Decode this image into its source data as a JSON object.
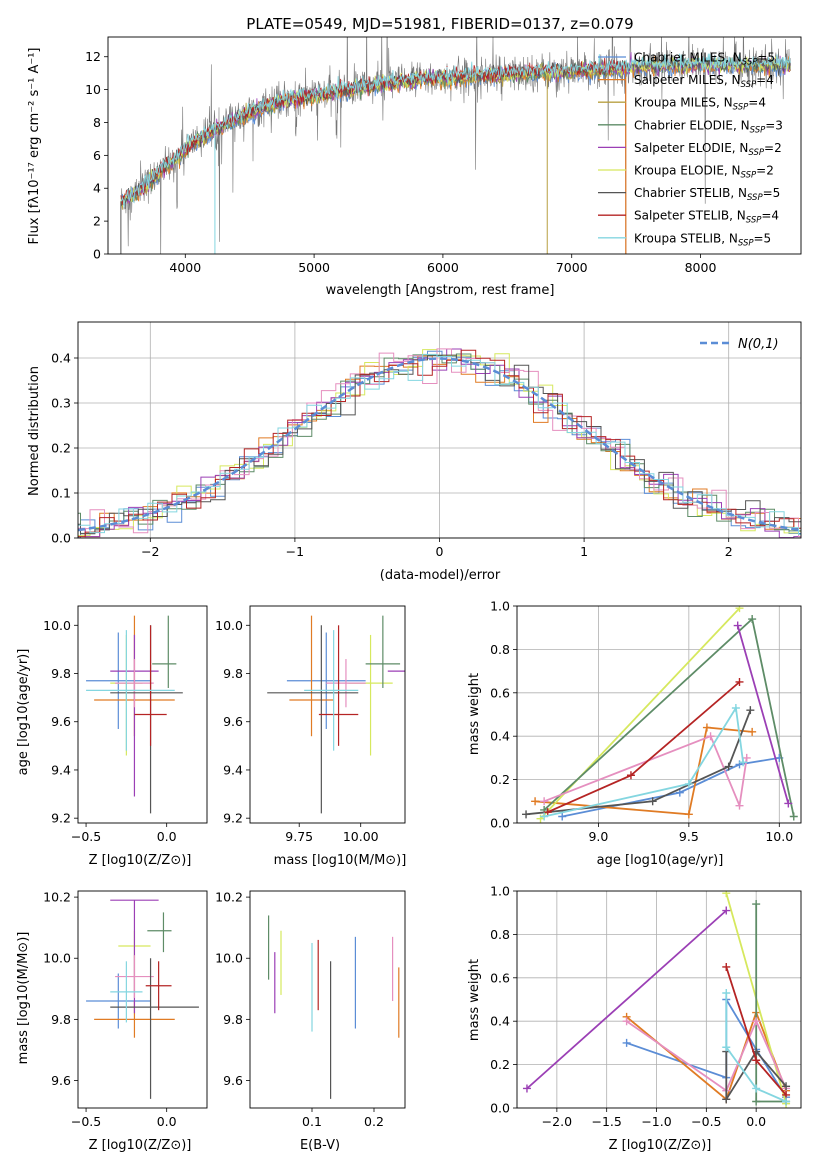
{
  "chart_data": [
    {
      "type": "line",
      "title": "PLATE=0549, MJD=51981, FIBERID=0137, z=0.079",
      "xlabel": "wavelength [Angstrom, rest frame]",
      "ylabel": "Flux [fλ10⁻¹⁷ erg cm⁻² s⁻¹ A⁻¹]",
      "xlim": [
        3400,
        8780
      ],
      "ylim": [
        0,
        13.2
      ],
      "xticks": [
        4000,
        5000,
        6000,
        7000,
        8000
      ],
      "yticks": [
        0,
        2,
        4,
        6,
        8,
        10,
        12
      ],
      "legend_position": "right",
      "continuum": {
        "x": [
          3500,
          3600,
          3700,
          3800,
          3900,
          4000,
          4100,
          4200,
          4300,
          4400,
          4500,
          4600,
          4700,
          4800,
          4900,
          5000,
          5200,
          5400,
          5600,
          5800,
          6000,
          6200,
          6400,
          6600,
          6800,
          7000,
          7200,
          7400,
          7600,
          7800,
          8000,
          8200,
          8400,
          8600,
          8700
        ],
        "y": [
          3.2,
          3.6,
          4.2,
          5.0,
          5.6,
          6.4,
          7.0,
          7.4,
          7.8,
          8.2,
          8.6,
          8.9,
          9.1,
          9.4,
          9.5,
          9.6,
          9.9,
          10.2,
          10.4,
          10.6,
          10.7,
          10.8,
          10.9,
          11.0,
          11.1,
          11.1,
          11.2,
          11.3,
          11.4,
          11.5,
          11.5,
          11.5,
          11.5,
          11.5,
          11.4
        ]
      },
      "series": [
        {
          "name": "Chabrier MILES, N_SSP=5",
          "name_main": "Chabrier MILES, N",
          "name_sub": "SSP",
          "name_tail": "=5",
          "color": "#5b8dd6"
        },
        {
          "name": "Salpeter MILES, N_SSP=4",
          "name_main": "Salpeter MILES, N",
          "name_sub": "SSP",
          "name_tail": "=4",
          "color": "#e07b24"
        },
        {
          "name": "Kroupa MILES, N_SSP=4",
          "name_main": "Kroupa MILES, N",
          "name_sub": "SSP",
          "name_tail": "=4",
          "color": "#b8a042"
        },
        {
          "name": "Chabrier ELODIE, N_SSP=3",
          "name_main": "Chabrier ELODIE, N",
          "name_sub": "SSP",
          "name_tail": "=3",
          "color": "#5e8c67"
        },
        {
          "name": "Salpeter ELODIE, N_SSP=2",
          "name_main": "Salpeter ELODIE, N",
          "name_sub": "SSP",
          "name_tail": "=2",
          "color": "#9b3fb5"
        },
        {
          "name": "Kroupa ELODIE, N_SSP=2",
          "name_main": "Kroupa ELODIE, N",
          "name_sub": "SSP",
          "name_tail": "=2",
          "color": "#d6e85e"
        },
        {
          "name": "Chabrier STELIB, N_SSP=5",
          "name_main": "Chabrier STELIB, N",
          "name_sub": "SSP",
          "name_tail": "=5",
          "color": "#555555"
        },
        {
          "name": "Salpeter STELIB, N_SSP=4",
          "name_main": "Salpeter STELIB, N",
          "name_sub": "SSP",
          "name_tail": "=4",
          "color": "#b52424"
        },
        {
          "name": "Kroupa STELIB, N_SSP=5",
          "name_main": "Kroupa STELIB, N",
          "name_sub": "SSP",
          "name_tail": "=5",
          "color": "#84d6e0"
        }
      ]
    },
    {
      "type": "bar",
      "xlabel": "(data-model)/error",
      "ylabel": "Normed distribution",
      "xlim": [
        -2.5,
        2.5
      ],
      "ylim": [
        0,
        0.48
      ],
      "xticks": [
        -2,
        -1,
        0,
        1,
        2
      ],
      "yticks": [
        0.0,
        0.1,
        0.2,
        0.3,
        0.4
      ],
      "grid": true,
      "bin_width": 0.1,
      "legend": {
        "label": "N(0,1)",
        "position": "top-right",
        "color": "#5b8dd6"
      },
      "histogram_colors": [
        "#5b8dd6",
        "#e07b24",
        "#d6e85e",
        "#5e8c67",
        "#9b3fb5",
        "#e58fbf",
        "#555555",
        "#b52424",
        "#84d6e0"
      ]
    },
    {
      "type": "scatter",
      "xlabel": "Z [log10(Z/Z⊙)]",
      "ylabel": "age [log10(age/yr)]",
      "xlim": [
        -0.55,
        0.25
      ],
      "ylim": [
        9.18,
        10.08
      ],
      "xticks": [
        -0.5,
        0.0
      ],
      "yticks": [
        9.2,
        9.4,
        9.6,
        9.8,
        10.0
      ],
      "points": [
        {
          "x": -0.3,
          "y": 9.77,
          "xerr": [
            0.2,
            0.2
          ],
          "yerr": [
            0.2,
            0.2
          ],
          "color": "#5b8dd6"
        },
        {
          "x": -0.2,
          "y": 9.69,
          "xerr": [
            0.25,
            0.25
          ],
          "yerr": [
            0.15,
            0.35
          ],
          "color": "#e07b24"
        },
        {
          "x": -0.25,
          "y": 9.76,
          "xerr": [
            0.1,
            0.1
          ],
          "yerr": [
            0.3,
            0.2
          ],
          "color": "#d6e85e"
        },
        {
          "x": 0.01,
          "y": 9.84,
          "xerr": [
            0.1,
            0.05
          ],
          "yerr": [
            0.1,
            0.2
          ],
          "color": "#5e8c67"
        },
        {
          "x": -0.2,
          "y": 9.81,
          "xerr": [
            0.15,
            0.15
          ],
          "yerr": [
            0.52,
            0.15
          ],
          "color": "#9b3fb5"
        },
        {
          "x": -0.2,
          "y": 9.76,
          "xerr": [
            0.12,
            0.12
          ],
          "yerr": [
            0.1,
            0.1
          ],
          "color": "#e58fbf"
        },
        {
          "x": -0.1,
          "y": 9.72,
          "xerr": [
            0.25,
            0.2
          ],
          "yerr": [
            0.5,
            0.28
          ],
          "color": "#555555"
        },
        {
          "x": -0.1,
          "y": 9.63,
          "xerr": [
            0.1,
            0.1
          ],
          "yerr": [
            0.13,
            0.37
          ],
          "color": "#b52424"
        },
        {
          "x": -0.25,
          "y": 9.73,
          "xerr": [
            0.25,
            0.3
          ],
          "yerr": [
            0.25,
            0.25
          ],
          "color": "#84d6e0"
        }
      ]
    },
    {
      "type": "scatter",
      "xlabel": "mass [log10(M/M⊙)]",
      "ylabel": "",
      "xlim": [
        9.55,
        10.18
      ],
      "ylim": [
        9.18,
        10.08
      ],
      "xticks": [
        9.75,
        10.0
      ],
      "yticks": [
        9.2,
        9.4,
        9.6,
        9.8,
        10.0
      ],
      "points": [
        {
          "x": 9.86,
          "y": 9.77,
          "xerr": [
            0.16,
            0.16
          ],
          "yerr": [
            0.2,
            0.2
          ],
          "color": "#5b8dd6"
        },
        {
          "x": 9.8,
          "y": 9.69,
          "xerr": [
            0.09,
            0.09
          ],
          "yerr": [
            0.15,
            0.35
          ],
          "color": "#e07b24"
        },
        {
          "x": 10.04,
          "y": 9.76,
          "xerr": [
            0.09,
            0.09
          ],
          "yerr": [
            0.3,
            0.2
          ],
          "color": "#d6e85e"
        },
        {
          "x": 10.09,
          "y": 9.84,
          "xerr": [
            0.07,
            0.07
          ],
          "yerr": [
            0.1,
            0.2
          ],
          "color": "#5e8c67"
        },
        {
          "x": 10.19,
          "y": 9.81,
          "xerr": [
            0.08,
            0.0
          ],
          "yerr": [
            0.52,
            0.03
          ],
          "color": "#9b3fb5"
        },
        {
          "x": 9.94,
          "y": 9.76,
          "xerr": [
            0.08,
            0.08
          ],
          "yerr": [
            0.1,
            0.1
          ],
          "color": "#e58fbf"
        },
        {
          "x": 9.84,
          "y": 9.72,
          "xerr": [
            0.22,
            0.15
          ],
          "yerr": [
            0.5,
            0.28
          ],
          "color": "#555555"
        },
        {
          "x": 9.91,
          "y": 9.63,
          "xerr": [
            0.08,
            0.08
          ],
          "yerr": [
            0.13,
            0.37
          ],
          "color": "#b52424"
        },
        {
          "x": 9.89,
          "y": 9.73,
          "xerr": [
            0.12,
            0.1
          ],
          "yerr": [
            0.25,
            0.25
          ],
          "color": "#84d6e0"
        }
      ]
    },
    {
      "type": "line",
      "xlabel": "age [log10(age/yr)]",
      "ylabel": "mass weight",
      "xlim": [
        8.55,
        10.12
      ],
      "ylim": [
        0,
        1.0
      ],
      "xticks": [
        9.0,
        9.5,
        10.0
      ],
      "yticks": [
        0.0,
        0.2,
        0.4,
        0.6,
        0.8,
        1.0
      ],
      "grid": true,
      "series": [
        {
          "color": "#5b8dd6",
          "x": [
            8.8,
            9.45,
            9.78,
            10.0
          ],
          "y": [
            0.03,
            0.14,
            0.27,
            0.3
          ]
        },
        {
          "color": "#e07b24",
          "x": [
            8.65,
            9.5,
            9.6,
            9.85
          ],
          "y": [
            0.1,
            0.04,
            0.44,
            0.42
          ]
        },
        {
          "color": "#d6e85e",
          "x": [
            8.68,
            9.78
          ],
          "y": [
            0.02,
            0.99
          ]
        },
        {
          "color": "#5e8c67",
          "x": [
            8.7,
            9.85,
            10.08
          ],
          "y": [
            0.06,
            0.94,
            0.03
          ]
        },
        {
          "color": "#9b3fb5",
          "x": [
            9.77,
            10.05
          ],
          "y": [
            0.91,
            0.09
          ]
        },
        {
          "color": "#e58fbf",
          "x": [
            8.7,
            9.62,
            9.78,
            9.82
          ],
          "y": [
            0.1,
            0.4,
            0.08,
            0.3
          ]
        },
        {
          "color": "#555555",
          "x": [
            8.6,
            9.3,
            9.72,
            9.84
          ],
          "y": [
            0.04,
            0.1,
            0.26,
            0.52
          ]
        },
        {
          "color": "#b52424",
          "x": [
            8.72,
            9.18,
            9.78
          ],
          "y": [
            0.05,
            0.22,
            0.65
          ]
        },
        {
          "color": "#84d6e0",
          "x": [
            8.7,
            9.5,
            9.76,
            9.8
          ],
          "y": [
            0.03,
            0.18,
            0.53,
            0.28
          ]
        }
      ]
    },
    {
      "type": "scatter",
      "xlabel": "Z [log10(Z/Z⊙)]",
      "ylabel": "mass [log10(M/M⊙)]",
      "xlim": [
        -0.55,
        0.25
      ],
      "ylim": [
        9.51,
        10.22
      ],
      "xticks": [
        -0.5,
        0.0
      ],
      "yticks": [
        9.6,
        9.8,
        10.0,
        10.2
      ],
      "points": [
        {
          "x": -0.3,
          "y": 9.86,
          "xerr": [
            0.2,
            0.2
          ],
          "yerr": [
            0.09,
            0.09
          ],
          "color": "#5b8dd6"
        },
        {
          "x": -0.2,
          "y": 9.8,
          "xerr": [
            0.25,
            0.25
          ],
          "yerr": [
            0.06,
            0.06
          ],
          "color": "#e07b24"
        },
        {
          "x": -0.2,
          "y": 10.04,
          "xerr": [
            0.1,
            0.1
          ],
          "yerr": [
            0.15,
            0.05
          ],
          "color": "#d6e85e"
        },
        {
          "x": -0.02,
          "y": 10.09,
          "xerr": [
            0.1,
            0.05
          ],
          "yerr": [
            0.07,
            0.06
          ],
          "color": "#5e8c67"
        },
        {
          "x": -0.2,
          "y": 10.19,
          "xerr": [
            0.15,
            0.15
          ],
          "yerr": [
            0.37,
            0.0
          ],
          "color": "#9b3fb5"
        },
        {
          "x": -0.2,
          "y": 9.94,
          "xerr": [
            0.12,
            0.12
          ],
          "yerr": [
            0.07,
            0.07
          ],
          "color": "#e58fbf"
        },
        {
          "x": -0.1,
          "y": 9.84,
          "xerr": [
            0.25,
            0.3
          ],
          "yerr": [
            0.3,
            0.16
          ],
          "color": "#555555"
        },
        {
          "x": -0.05,
          "y": 9.91,
          "xerr": [
            0.08,
            0.08
          ],
          "yerr": [
            0.08,
            0.08
          ],
          "color": "#b52424"
        },
        {
          "x": -0.25,
          "y": 9.89,
          "xerr": [
            0.1,
            0.1
          ],
          "yerr": [
            0.1,
            0.1
          ],
          "color": "#84d6e0"
        }
      ]
    },
    {
      "type": "scatter",
      "xlabel": "E(B-V)",
      "ylabel": "",
      "xlim": [
        0.0,
        0.25
      ],
      "ylim": [
        9.51,
        10.22
      ],
      "xticks": [
        0.1,
        0.2
      ],
      "yticks": [
        9.6,
        9.8,
        10.0,
        10.2
      ],
      "points": [
        {
          "x": 0.17,
          "y": 9.86,
          "yerr": [
            0.09,
            0.21
          ],
          "color": "#5b8dd6"
        },
        {
          "x": 0.24,
          "y": 9.8,
          "yerr": [
            0.06,
            0.17
          ],
          "color": "#e07b24"
        },
        {
          "x": 0.05,
          "y": 9.98,
          "yerr": [
            0.1,
            0.11
          ],
          "color": "#d6e85e"
        },
        {
          "x": 0.03,
          "y": 10.04,
          "yerr": [
            0.11,
            0.1
          ],
          "color": "#5e8c67"
        },
        {
          "x": 0.04,
          "y": 9.92,
          "yerr": [
            0.1,
            0.1
          ],
          "color": "#9b3fb5"
        },
        {
          "x": 0.23,
          "y": 9.96,
          "yerr": [
            0.1,
            0.11
          ],
          "color": "#e58fbf"
        },
        {
          "x": 0.13,
          "y": 9.76,
          "yerr": [
            0.22,
            0.23
          ],
          "color": "#555555"
        },
        {
          "x": 0.11,
          "y": 9.94,
          "yerr": [
            0.11,
            0.12
          ],
          "color": "#b52424"
        },
        {
          "x": 0.1,
          "y": 9.9,
          "yerr": [
            0.14,
            0.15
          ],
          "color": "#84d6e0"
        }
      ]
    },
    {
      "type": "line",
      "xlabel": "Z [log10(Z/Z⊙)]",
      "ylabel": "mass weight",
      "xlim": [
        -2.4,
        0.45
      ],
      "ylim": [
        0,
        1.0
      ],
      "xticks": [
        -2.0,
        -1.5,
        -1.0,
        -0.5,
        0.0
      ],
      "yticks": [
        0.0,
        0.2,
        0.4,
        0.6,
        0.8,
        1.0
      ],
      "grid": true,
      "series": [
        {
          "color": "#5b8dd6",
          "x": [
            -1.3,
            -0.3,
            -0.3,
            0.0,
            0.3
          ],
          "y": [
            0.3,
            0.14,
            0.5,
            0.27,
            0.05
          ]
        },
        {
          "color": "#e07b24",
          "x": [
            -1.3,
            -0.3,
            0.0,
            0.3
          ],
          "y": [
            0.42,
            0.04,
            0.44,
            0.08
          ]
        },
        {
          "color": "#d6e85e",
          "x": [
            -0.3,
            0.3
          ],
          "y": [
            0.99,
            0.02
          ]
        },
        {
          "color": "#5e8c67",
          "x": [
            0.0,
            0.0,
            0.3
          ],
          "y": [
            0.94,
            0.03,
            0.03
          ]
        },
        {
          "color": "#9b3fb5",
          "x": [
            -2.3,
            -0.3
          ],
          "y": [
            0.09,
            0.91
          ]
        },
        {
          "color": "#e58fbf",
          "x": [
            -1.3,
            -0.3,
            0.0,
            0.3
          ],
          "y": [
            0.4,
            0.08,
            0.4,
            0.09
          ]
        },
        {
          "color": "#555555",
          "x": [
            -0.3,
            -0.3,
            0.0,
            0.3
          ],
          "y": [
            0.26,
            0.04,
            0.26,
            0.1
          ]
        },
        {
          "color": "#b52424",
          "x": [
            -0.3,
            0.0,
            0.3
          ],
          "y": [
            0.65,
            0.22,
            0.06
          ]
        },
        {
          "color": "#84d6e0",
          "x": [
            -0.3,
            -0.3,
            0.0,
            0.3
          ],
          "y": [
            0.53,
            0.28,
            0.09,
            0.03
          ]
        }
      ]
    }
  ]
}
